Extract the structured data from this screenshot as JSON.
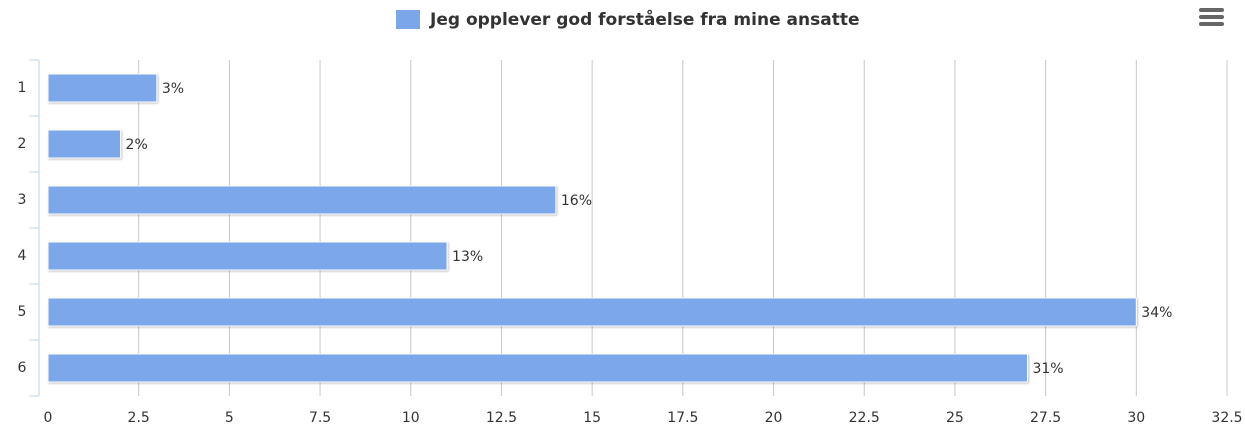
{
  "chart_data": {
    "type": "bar",
    "orientation": "horizontal",
    "legend": "Jeg opplever god forståelse fra mine ansatte",
    "series": [
      {
        "name": "Jeg opplever god forståelse fra mine ansatte",
        "color": "#7ba7e9",
        "values": [
          3,
          2,
          14,
          11,
          30,
          27
        ],
        "value_labels": [
          "3%",
          "2%",
          "16%",
          "13%",
          "34%",
          "31%"
        ]
      }
    ],
    "categories": [
      "1",
      "2",
      "3",
      "4",
      "5",
      "6"
    ],
    "xlim": [
      0,
      32.5
    ],
    "xticks": [
      0,
      2.5,
      5,
      7.5,
      10,
      12.5,
      15,
      17.5,
      20,
      22.5,
      25,
      27.5,
      30,
      32.5
    ],
    "grid": true,
    "legend_position": "top"
  }
}
